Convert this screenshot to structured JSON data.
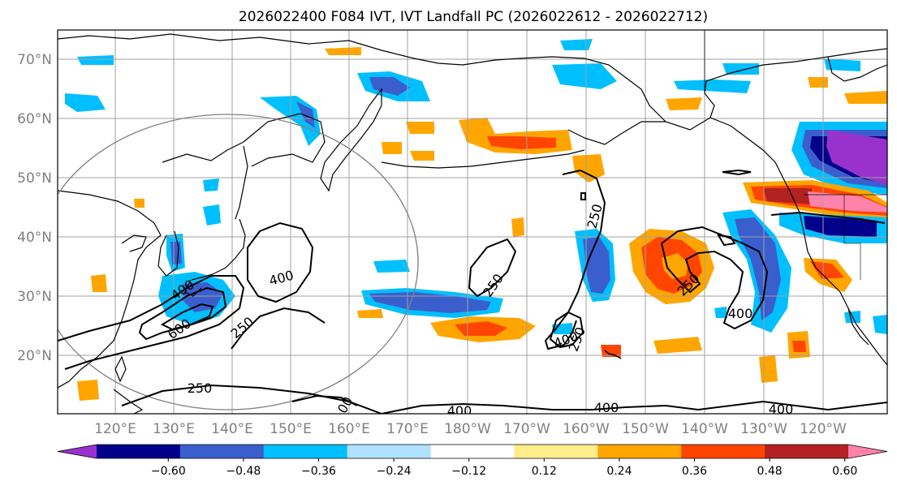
{
  "title": "2026022400 F084 IVT, IVT Landfall PC (2026022612 - 2026022712)",
  "map": {
    "lat_ticks": [
      "70°N",
      "60°N",
      "50°N",
      "40°N",
      "30°N",
      "20°N"
    ],
    "lon_ticks": [
      "120°E",
      "130°E",
      "140°E",
      "150°E",
      "160°E",
      "170°E",
      "180°W",
      "170°W",
      "160°W",
      "150°W",
      "140°W",
      "130°W",
      "120°W"
    ],
    "colors": {
      "coast": "#000000",
      "grid": "#a0a0a0",
      "circle": "#808080"
    },
    "contour_labels": [
      {
        "text": "400"
      },
      {
        "text": "600"
      },
      {
        "text": "250"
      },
      {
        "text": "400"
      },
      {
        "text": "250"
      },
      {
        "text": "250"
      },
      {
        "text": "250"
      },
      {
        "text": "400"
      },
      {
        "text": "250"
      },
      {
        "text": "250"
      },
      {
        "text": "400"
      },
      {
        "text": "400"
      },
      {
        "text": "00"
      },
      {
        "text": "400"
      },
      {
        "text": "400"
      },
      {
        "text": "400"
      }
    ]
  },
  "colorbar": {
    "ticks": [
      "−0.60",
      "−0.48",
      "−0.36",
      "−0.24",
      "−0.12",
      "0.12",
      "0.24",
      "0.36",
      "0.48",
      "0.60"
    ],
    "colors": [
      "#9932cc",
      "#00008b",
      "#3a5fcd",
      "#00bfff",
      "#b0e2ff",
      "#ffffff",
      "#ffec8b",
      "#ffa500",
      "#ff4500",
      "#b22222",
      "#ff82ab"
    ]
  }
}
